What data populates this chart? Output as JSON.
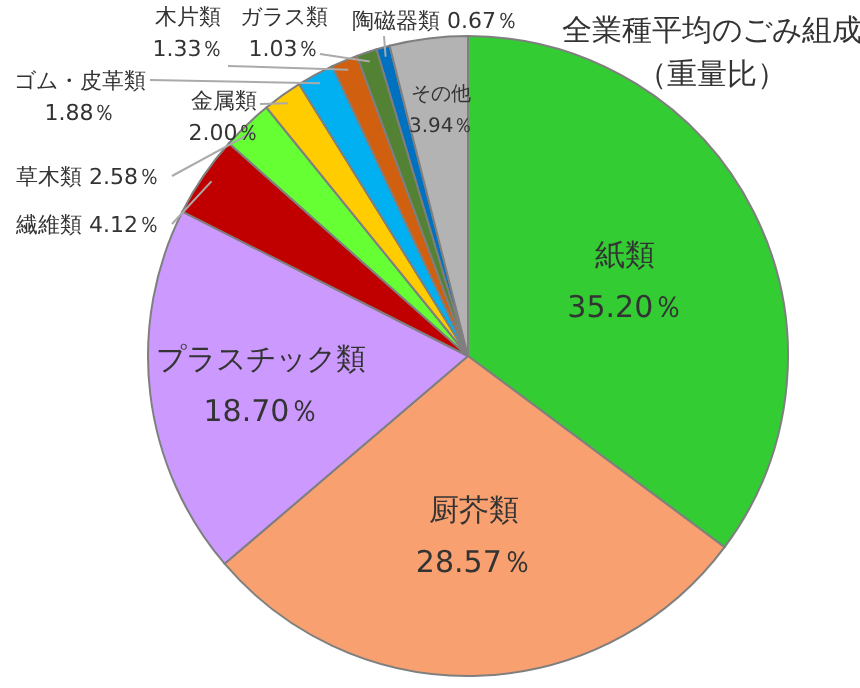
{
  "chart_data": {
    "type": "pie",
    "title": "全業種平均のごみ組成",
    "subtitle": "（重量比）",
    "categories": [
      "紙類",
      "厨芥類",
      "プラスチック類",
      "繊維類",
      "草木類",
      "金属類",
      "ゴム・皮革類",
      "木片類",
      "ガラス類",
      "陶磁器類",
      "その他"
    ],
    "values": [
      35.2,
      28.57,
      18.7,
      4.12,
      2.58,
      2.0,
      1.88,
      1.33,
      1.03,
      0.67,
      3.94
    ],
    "colors": [
      "#33cc33",
      "#f8a070",
      "#cc99ff",
      "#c00000",
      "#66ff33",
      "#ffcc00",
      "#00b0f0",
      "#d0600f",
      "#548235",
      "#0070c0",
      "#b3b3b3"
    ],
    "value_labels": [
      "35.20％",
      "28.57％",
      "18.70％",
      "4.12％",
      "2.58％",
      "2.00％",
      "1.88％",
      "1.33％",
      "1.03％",
      "0.67％",
      "3.94％"
    ]
  }
}
